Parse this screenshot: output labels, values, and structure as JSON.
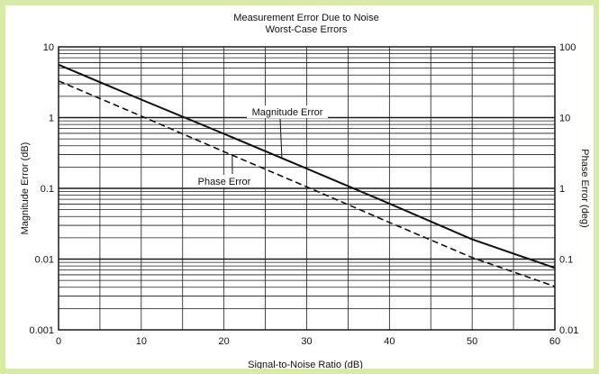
{
  "colors": {
    "frame_border": "#d7eaa6",
    "background": "#ffffff",
    "grid": "#1a1a1a",
    "series": "#111111"
  },
  "chart_data": {
    "type": "line",
    "title": "Measurement Error Due to Noise",
    "subtitle": "Worst-Case Errors",
    "xlabel": "Signal-to-Noise Ratio (dB)",
    "ylabel": "Magnitude Error (dB)",
    "y2label": "Phase Error (deg)",
    "xlim": [
      0,
      60
    ],
    "ylim": [
      0.001,
      10
    ],
    "y2lim": [
      0.01,
      100
    ],
    "yscale": "log",
    "y2scale": "log",
    "grid": true,
    "x_ticks": [
      "0",
      "10",
      "20",
      "30",
      "40",
      "50",
      "60"
    ],
    "y_ticks": [
      "0.001",
      "0.01",
      "0.1",
      "1",
      "10"
    ],
    "y2_ticks": [
      "0.01",
      "0.1",
      "1",
      "10",
      "100"
    ],
    "series": [
      {
        "name": "Magnitude Error",
        "axis": "left",
        "style": "solid",
        "x": [
          0,
          10,
          20,
          30,
          40,
          50,
          60
        ],
        "y": [
          5.6,
          1.8,
          0.59,
          0.19,
          0.061,
          0.019,
          0.0075
        ]
      },
      {
        "name": "Phase Error",
        "axis": "right",
        "style": "dashed",
        "x": [
          0,
          10,
          20,
          30,
          40,
          50,
          60
        ],
        "y": [
          33,
          10.5,
          3.3,
          1.05,
          0.33,
          0.105,
          0.041
        ]
      }
    ]
  }
}
